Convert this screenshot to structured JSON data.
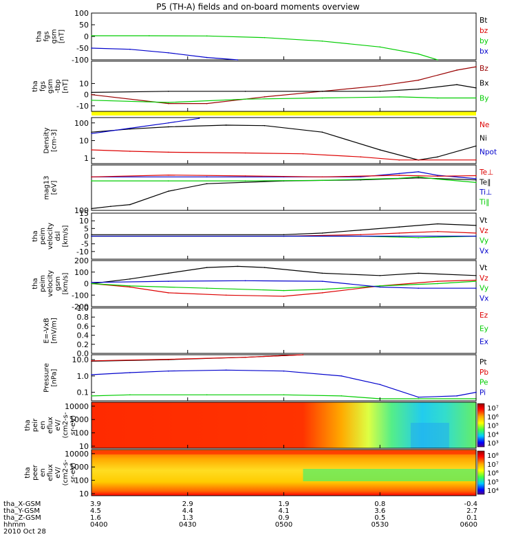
{
  "title": "P5 (TH-A) fields and on-board moments overview",
  "footer": {
    "row_labels": [
      "tha_X-GSM",
      "tha_Y-GSM",
      "tha_Z-GSM",
      "hhmm"
    ],
    "date": "2010 Oct 28",
    "columns": [
      [
        "3.9",
        "4.5",
        "1.6",
        "0400"
      ],
      [
        "2.9",
        "4.4",
        "1.3",
        "0430"
      ],
      [
        "1.9",
        "4.1",
        "0.9",
        "0500"
      ],
      [
        "0.8",
        "3.6",
        "0.5",
        "0530"
      ],
      [
        "-0.4",
        "2.7",
        "0.1",
        "0600"
      ]
    ]
  },
  "colors": {
    "black": "#000000",
    "red": "#dd0000",
    "green": "#00cc00",
    "blue": "#0000cc",
    "dark_red": "#990000",
    "yellow": "#ffff00"
  },
  "chart_data": [
    {
      "type": "line",
      "ylabel_lines": [
        "tha",
        "fgs",
        "gsm",
        "[nT]"
      ],
      "ylim": [
        -100,
        100
      ],
      "yticks": [
        "100",
        "50",
        "0",
        "-50",
        "-100"
      ],
      "legend": [
        {
          "label": "Bt",
          "color": "#000000"
        },
        {
          "label": "bz",
          "color": "#dd0000"
        },
        {
          "label": "by",
          "color": "#00cc00"
        },
        {
          "label": "bx",
          "color": "#0000cc"
        }
      ],
      "series": [
        {
          "name": "by",
          "color": "#00cc00",
          "x": [
            0,
            0.15,
            0.3,
            0.45,
            0.6,
            0.75,
            0.85,
            0.9
          ],
          "y": [
            3,
            3,
            2,
            -5,
            -20,
            -45,
            -75,
            -100
          ]
        },
        {
          "name": "bx",
          "color": "#0000cc",
          "x": [
            0,
            0.1,
            0.2,
            0.3,
            0.38
          ],
          "y": [
            -50,
            -55,
            -70,
            -90,
            -100
          ]
        }
      ]
    },
    {
      "type": "line",
      "ylabel_lines": [
        "tha",
        "fgs",
        "gsm",
        "-tbp",
        "[nT]"
      ],
      "ylim": [
        -15,
        30
      ],
      "yticks": [
        "10",
        "0",
        "-10"
      ],
      "legend": [
        {
          "label": "Bz",
          "color": "#990000"
        },
        {
          "label": "Bx",
          "color": "#000000"
        },
        {
          "label": "By",
          "color": "#00cc00"
        }
      ],
      "series": [
        {
          "name": "Bz",
          "color": "#990000",
          "x": [
            0,
            0.2,
            0.3,
            0.45,
            0.6,
            0.75,
            0.85,
            0.95,
            1.0
          ],
          "y": [
            0,
            -8,
            -8,
            -2,
            3,
            8,
            13,
            22,
            25
          ]
        },
        {
          "name": "Bx",
          "color": "#000000",
          "x": [
            0,
            0.2,
            0.4,
            0.6,
            0.75,
            0.85,
            0.95,
            1.0
          ],
          "y": [
            2,
            3,
            3,
            3,
            3,
            5,
            9,
            6
          ]
        },
        {
          "name": "By",
          "color": "#00cc00",
          "x": [
            0,
            0.2,
            0.4,
            0.6,
            0.8,
            0.9,
            1.0
          ],
          "y": [
            -5,
            -7,
            -4,
            -3,
            -2,
            -3,
            -3
          ]
        }
      ]
    },
    {
      "type": "line",
      "yscale": "log",
      "ylabel_lines": [
        "Density",
        "[cm-3]"
      ],
      "ylim": [
        0.5,
        200
      ],
      "yticks": [
        "100",
        "10",
        "1"
      ],
      "legend": [
        {
          "label": "Ne",
          "color": "#dd0000"
        },
        {
          "label": "Ni",
          "color": "#000000"
        },
        {
          "label": "Npot",
          "color": "#0000cc"
        }
      ],
      "series": [
        {
          "name": "Ni",
          "color": "#000000",
          "x": [
            0,
            0.1,
            0.2,
            0.35,
            0.45,
            0.6,
            0.75,
            0.85,
            0.9,
            1.0
          ],
          "y": [
            30,
            45,
            60,
            75,
            70,
            30,
            3,
            0.8,
            1.2,
            5
          ]
        },
        {
          "name": "Ne",
          "color": "#dd0000",
          "x": [
            0,
            0.1,
            0.2,
            0.4,
            0.55,
            0.7,
            0.8,
            1.0
          ],
          "y": [
            3,
            2.5,
            2.2,
            2,
            1.8,
            1.2,
            0.8,
            0.8
          ]
        },
        {
          "name": "Npot",
          "color": "#0000cc",
          "x": [
            0,
            0.1,
            0.2,
            0.28
          ],
          "y": [
            25,
            50,
            100,
            180
          ]
        }
      ]
    },
    {
      "type": "line",
      "yscale": "log",
      "ylabel_lines": [
        "mag13",
        "[eV]"
      ],
      "ylim": [
        100,
        10000
      ],
      "yticks": [
        "100"
      ],
      "legend": [
        {
          "label": "Te⊥",
          "color": "#dd0000"
        },
        {
          "label": "Te∥",
          "color": "#000000"
        },
        {
          "label": "Ti⊥",
          "color": "#0000cc"
        },
        {
          "label": "Ti∥",
          "color": "#00cc00"
        }
      ],
      "series": [
        {
          "name": "Ti⊥",
          "color": "#0000cc",
          "x": [
            0,
            0.3,
            0.5,
            0.7,
            0.8,
            0.85,
            0.9,
            1.0
          ],
          "y": [
            3000,
            3000,
            3000,
            3000,
            4200,
            5000,
            3500,
            2500
          ]
        },
        {
          "name": "Te⊥",
          "color": "#dd0000",
          "x": [
            0,
            0.2,
            0.4,
            0.6,
            0.8,
            0.9,
            1.0
          ],
          "y": [
            3000,
            3600,
            3300,
            3000,
            3500,
            3200,
            3400
          ]
        },
        {
          "name": "Te∥",
          "color": "#000000",
          "x": [
            0,
            0.05,
            0.1,
            0.2,
            0.3,
            0.5,
            0.7,
            0.85,
            1.0
          ],
          "y": [
            120,
            150,
            180,
            700,
            1500,
            2000,
            2200,
            2700,
            2200
          ]
        },
        {
          "name": "Ti∥",
          "color": "#00cc00",
          "x": [
            0,
            0.2,
            0.4,
            0.6,
            0.8,
            0.85,
            0.9,
            1.0
          ],
          "y": [
            2000,
            2000,
            2000,
            2100,
            2600,
            3000,
            2400,
            1700
          ]
        }
      ]
    },
    {
      "type": "line",
      "ylabel_lines": [
        "tha",
        "peim",
        "velocity",
        "dsl",
        "[km/s]"
      ],
      "ylim": [
        -15,
        15
      ],
      "yticks": [
        "15",
        "10",
        "5",
        "0",
        "-5",
        "-10"
      ],
      "legend": [
        {
          "label": "Vt",
          "color": "#000000"
        },
        {
          "label": "Vz",
          "color": "#dd0000"
        },
        {
          "label": "Vy",
          "color": "#00cc00"
        },
        {
          "label": "Vx",
          "color": "#0000cc"
        }
      ],
      "series": [
        {
          "name": "Vt",
          "color": "#000000",
          "x": [
            0,
            0.5,
            0.6,
            0.7,
            0.8,
            0.9,
            1.0
          ],
          "y": [
            1,
            1,
            2,
            4,
            6,
            8,
            7
          ]
        },
        {
          "name": "Vz",
          "color": "#dd0000",
          "x": [
            0,
            0.5,
            0.7,
            0.8,
            0.9,
            1.0
          ],
          "y": [
            0,
            0,
            1,
            2,
            3,
            2
          ]
        },
        {
          "name": "Vy",
          "color": "#00cc00",
          "x": [
            0,
            0.5,
            0.7,
            0.85,
            1.0
          ],
          "y": [
            0,
            0,
            0,
            -1,
            0
          ]
        },
        {
          "name": "Vx",
          "color": "#0000cc",
          "x": [
            0,
            0.5,
            0.8,
            1.0
          ],
          "y": [
            0,
            0,
            0,
            0
          ]
        }
      ]
    },
    {
      "type": "line",
      "ylabel_lines": [
        "tha",
        "peim",
        "velocity",
        "gsm",
        "[km/s]"
      ],
      "ylim": [
        -200,
        200
      ],
      "yticks": [
        "200",
        "100",
        "0",
        "-100",
        "-200"
      ],
      "legend": [
        {
          "label": "Vt",
          "color": "#000000"
        },
        {
          "label": "Vz",
          "color": "#dd0000"
        },
        {
          "label": "Vy",
          "color": "#00cc00"
        },
        {
          "label": "Vx",
          "color": "#0000cc"
        }
      ],
      "series": [
        {
          "name": "Vt",
          "color": "#000000",
          "x": [
            0,
            0.1,
            0.2,
            0.3,
            0.38,
            0.45,
            0.6,
            0.75,
            0.85,
            1.0
          ],
          "y": [
            0,
            40,
            90,
            140,
            150,
            140,
            90,
            70,
            90,
            70
          ]
        },
        {
          "name": "Vz",
          "color": "#dd0000",
          "x": [
            0,
            0.1,
            0.2,
            0.35,
            0.5,
            0.6,
            0.75,
            0.9,
            1.0
          ],
          "y": [
            0,
            -30,
            -80,
            -100,
            -110,
            -80,
            -20,
            20,
            30
          ]
        },
        {
          "name": "Vy",
          "color": "#00cc00",
          "x": [
            0,
            0.1,
            0.3,
            0.5,
            0.6,
            0.75,
            0.9,
            1.0
          ],
          "y": [
            0,
            -20,
            -40,
            -60,
            -50,
            -20,
            0,
            20
          ]
        },
        {
          "name": "Vx",
          "color": "#0000cc",
          "x": [
            0,
            0.2,
            0.4,
            0.6,
            0.75,
            0.85,
            1.0
          ],
          "y": [
            10,
            20,
            25,
            20,
            -30,
            -40,
            -40
          ]
        }
      ]
    },
    {
      "type": "line",
      "ylabel_lines": [
        "E=-VxB",
        "[mV/m]"
      ],
      "ylim": [
        0,
        1
      ],
      "yticks": [
        "1.0",
        "0.8",
        "0.6",
        "0.4",
        "0.2",
        "0.0"
      ],
      "legend": [
        {
          "label": "Ez",
          "color": "#dd0000"
        },
        {
          "label": "Ey",
          "color": "#00cc00"
        },
        {
          "label": "Ex",
          "color": "#0000cc"
        }
      ],
      "series": []
    },
    {
      "type": "line",
      "yscale": "log",
      "ylabel_lines": [
        "Pressure",
        "[nPa]"
      ],
      "ylim": [
        0.03,
        20
      ],
      "yticks": [
        "10.0",
        "1.0",
        "0.1"
      ],
      "legend": [
        {
          "label": "Pt",
          "color": "#000000"
        },
        {
          "label": "Pb",
          "color": "#dd0000"
        },
        {
          "label": "Pe",
          "color": "#00cc00"
        },
        {
          "label": "Pi",
          "color": "#0000cc"
        }
      ],
      "series": [
        {
          "name": "Pt",
          "color": "#000000",
          "x": [
            0,
            0.2,
            0.4,
            0.55
          ],
          "y": [
            8,
            10,
            14,
            20
          ]
        },
        {
          "name": "Pb",
          "color": "#dd0000",
          "x": [
            0,
            0.2,
            0.4,
            0.55
          ],
          "y": [
            8.5,
            10.5,
            14,
            20
          ]
        },
        {
          "name": "Pi",
          "color": "#0000cc",
          "x": [
            0,
            0.1,
            0.2,
            0.35,
            0.5,
            0.65,
            0.75,
            0.85,
            0.95,
            1.0
          ],
          "y": [
            1.2,
            1.6,
            2,
            2.3,
            2,
            1,
            0.3,
            0.05,
            0.06,
            0.1
          ]
        },
        {
          "name": "Pe",
          "color": "#00cc00",
          "x": [
            0,
            0.1,
            0.3,
            0.5,
            0.65,
            0.75,
            0.85,
            1.0
          ],
          "y": [
            0.06,
            0.07,
            0.07,
            0.07,
            0.06,
            0.04,
            0.04,
            0.04
          ]
        }
      ]
    },
    {
      "type": "heatmap",
      "ylabel_lines": [
        "tha",
        "peir",
        "en",
        "eflux",
        "eV/",
        "(cm2-s-",
        "sr-eV)"
      ],
      "yscale": "log",
      "ylim": [
        7,
        20000
      ],
      "yticks": [
        "10000",
        "1000",
        "100",
        "10"
      ],
      "colorbar_ticks": [
        "10⁷",
        "10⁶",
        "10⁵",
        "10⁴",
        "10³"
      ]
    },
    {
      "type": "heatmap",
      "ylabel_lines": [
        "tha",
        "peer",
        "en",
        "eflux",
        "eV/",
        "(cm2-s-",
        "sr-eV)"
      ],
      "yscale": "log",
      "ylim": [
        7,
        20000
      ],
      "yticks": [
        "10000",
        "1000",
        "100",
        "10"
      ],
      "colorbar_ticks": [
        "10⁸",
        "10⁷",
        "10⁶",
        "10⁵",
        "10⁴"
      ]
    }
  ]
}
